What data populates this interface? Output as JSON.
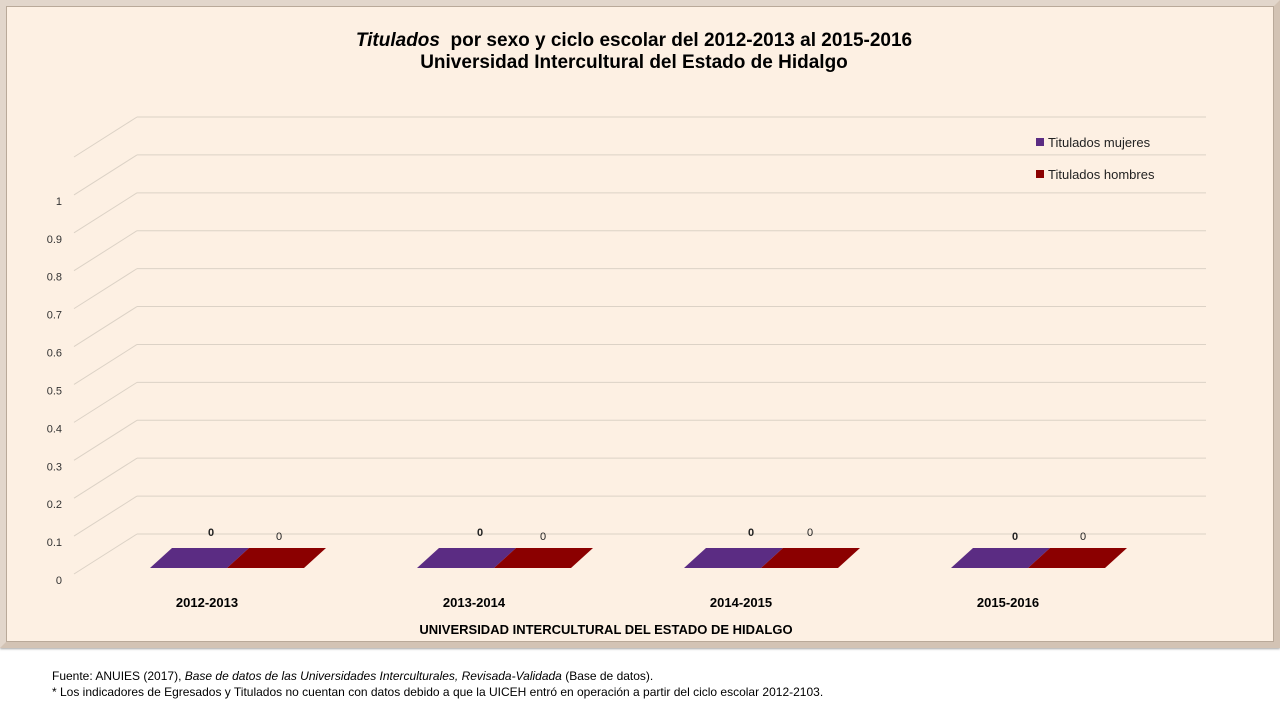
{
  "title": {
    "line1_italic": "Titulados",
    "line1_rest": "por sexo y ciclo escolar del  2012-2013 al 2015-2016",
    "line2": "Universidad Intercultural del Estado de Hidalgo"
  },
  "chart_data": {
    "type": "bar",
    "title": "Titulados por sexo y ciclo escolar del 2012-2013 al 2015-2016 Universidad Intercultural del Estado de Hidalgo",
    "categories": [
      "2012-2013",
      "2013-2014",
      "2014-2015",
      "2015-2016"
    ],
    "series": [
      {
        "name": "Titulados mujeres",
        "values": [
          0,
          0,
          0,
          0
        ],
        "color": "#5b2c83"
      },
      {
        "name": "Titulados hombres",
        "values": [
          0,
          0,
          0,
          0
        ],
        "color": "#8b0000"
      }
    ],
    "xlabel": "UNIVERSIDAD INTERCULTURAL DEL ESTADO DE HIDALGO",
    "ylabel": "",
    "ylim": [
      0,
      1
    ],
    "yticks": [
      "0",
      "0.1",
      "0.2",
      "0.3",
      "0.4",
      "0.5",
      "0.6",
      "0.7",
      "0.8",
      "0.9",
      "1"
    ],
    "data_labels": [
      "0",
      "0"
    ],
    "grid": true,
    "legend_position": "top-right",
    "style": "3d"
  },
  "footnote": {
    "source_prefix": "Fuente:  ANUIES (2017),",
    "source_italic": "Base de datos de las Universidades  Interculturales, Revisada-Validada",
    "source_suffix": " (Base de datos).",
    "note": "* Los indicadores  de Egresados  y Titulados no cuentan con datos debido a que la UICEH entró en operación  a partir del ciclo escolar 2012-2103."
  }
}
